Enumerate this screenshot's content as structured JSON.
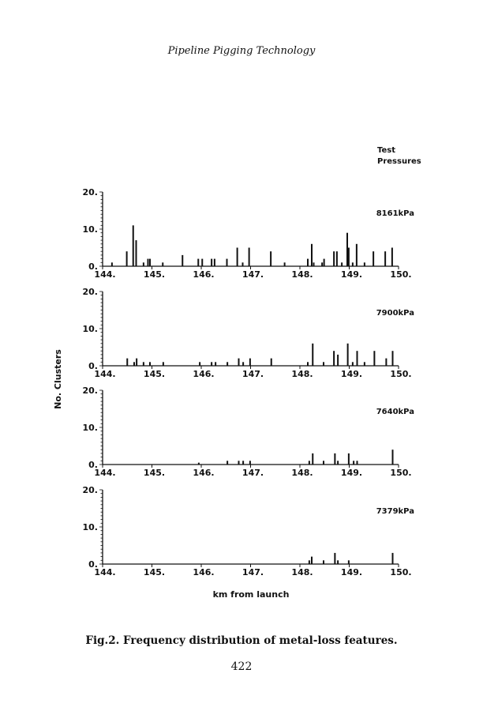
{
  "page": {
    "running_header": "Pipeline Pigging Technology",
    "caption": "Fig.2. Frequency distribution of metal-loss features.",
    "page_number": "422"
  },
  "chart_data": {
    "type": "bar",
    "legend_title": "Test Pressures",
    "xlabel": "km from launch",
    "ylabel": "No. Clusters",
    "xlim": [
      144,
      150
    ],
    "ylim": [
      0,
      20
    ],
    "xticks": [
      "144.",
      "145.",
      "146.",
      "147.",
      "148.",
      "149.",
      "150."
    ],
    "yticks": [
      "0.",
      "10.",
      "20."
    ],
    "panels": [
      {
        "name": "8161kPa",
        "x": [
          144.19,
          144.49,
          144.62,
          144.68,
          144.83,
          144.92,
          144.96,
          145.22,
          145.62,
          145.94,
          146.02,
          146.21,
          146.27,
          146.52,
          146.73,
          146.84,
          146.97,
          147.41,
          147.69,
          148.16,
          148.24,
          148.28,
          148.45,
          148.49,
          148.69,
          148.75,
          148.85,
          148.96,
          148.99,
          149.07,
          149.15,
          149.31,
          149.49,
          149.73,
          149.87
        ],
        "values": [
          1,
          4,
          11,
          7,
          1,
          2,
          2,
          1,
          3,
          2,
          2,
          2,
          2,
          2,
          5,
          1,
          5,
          4,
          1,
          2,
          6,
          1,
          1,
          2,
          4,
          4,
          1,
          9,
          5,
          1,
          6,
          1,
          4,
          4,
          5
        ]
      },
      {
        "name": "7900kPa",
        "x": [
          144.5,
          144.64,
          144.69,
          144.83,
          144.96,
          145.23,
          145.97,
          146.21,
          146.29,
          146.53,
          146.76,
          146.85,
          146.99,
          147.42,
          148.16,
          148.26,
          148.48,
          148.69,
          148.77,
          148.97,
          149.07,
          149.16,
          149.31,
          149.51,
          149.75,
          149.88
        ],
        "values": [
          2,
          1,
          2,
          1,
          1,
          1,
          1,
          1,
          1,
          1,
          2,
          1,
          2,
          2,
          1,
          6,
          1,
          4,
          3,
          6,
          1,
          4,
          1,
          4,
          2,
          4
        ]
      },
      {
        "name": "7640kPa",
        "x": [
          145.95,
          146.53,
          146.76,
          146.85,
          146.99,
          148.19,
          148.26,
          148.48,
          148.71,
          148.77,
          148.99,
          149.09,
          149.16,
          149.88
        ],
        "values": [
          0.5,
          1,
          1,
          1,
          1,
          1,
          3,
          1,
          3,
          1,
          3,
          1,
          1,
          4
        ]
      },
      {
        "name": "7379kPa",
        "x": [
          148.19,
          148.24,
          148.48,
          148.71,
          148.77,
          148.99,
          149.88
        ],
        "values": [
          1,
          2,
          1,
          3,
          1,
          1,
          3
        ]
      }
    ]
  }
}
